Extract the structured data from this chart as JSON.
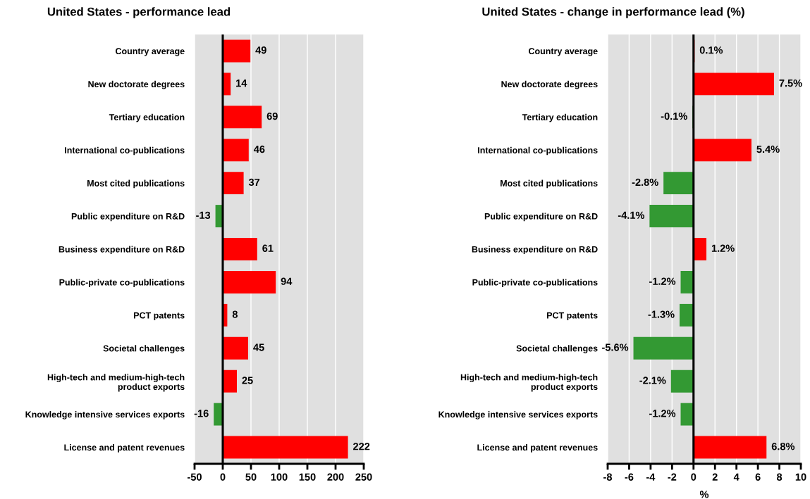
{
  "chart_data": [
    {
      "type": "bar",
      "orientation": "horizontal",
      "title": "United States - performance lead",
      "categories": [
        "Country average",
        "New doctorate degrees",
        "Tertiary education",
        "International co-publications",
        "Most cited publications",
        "Public expenditure on R&D",
        "Business expenditure on R&D",
        "Public-private co-publications",
        "PCT patents",
        "Societal challenges",
        "High-tech and medium-high-tech\nproduct exports",
        "Knowledge intensive services exports",
        "License and patent revenues"
      ],
      "values": [
        49,
        14,
        69,
        46,
        37,
        -13,
        61,
        94,
        8,
        45,
        25,
        -16,
        222
      ],
      "colors": [
        "#ff0000",
        "#ff0000",
        "#ff0000",
        "#ff0000",
        "#ff0000",
        "#339933",
        "#ff0000",
        "#ff0000",
        "#ff0000",
        "#ff0000",
        "#ff0000",
        "#339933",
        "#ff0000"
      ],
      "xlim": [
        -50,
        250
      ],
      "xticks": [
        -50,
        0,
        50,
        100,
        150,
        200,
        250
      ],
      "grid": "x",
      "data_labels": true,
      "ref_lines": [
        {
          "axis": "x",
          "value": 0,
          "color": "#000000"
        }
      ]
    },
    {
      "type": "bar",
      "orientation": "horizontal",
      "title": "United States - change in performance lead (%)",
      "xlabel": "%",
      "categories": [
        "Country average",
        "New doctorate degrees",
        "Tertiary education",
        "International co-publications",
        "Most cited publications",
        "Public expenditure on R&D",
        "Business expenditure on R&D",
        "Public-private co-publications",
        "PCT patents",
        "Societal challenges",
        "High-tech and medium-high-tech\nproduct exports",
        "Knowledge intensive services exports",
        "License and patent revenues"
      ],
      "values": [
        0.1,
        7.5,
        -0.1,
        5.4,
        -2.8,
        -4.1,
        1.2,
        -1.2,
        -1.3,
        -5.6,
        -2.1,
        -1.2,
        6.8
      ],
      "value_labels": [
        "0.1%",
        "7.5%",
        "-0.1%",
        "5.4%",
        "-2.8%",
        "-4.1%",
        "1.2%",
        "-1.2%",
        "-1.3%",
        "-5.6%",
        "-2.1%",
        "-1.2%",
        "6.8%"
      ],
      "colors": [
        "#ff0000",
        "#ff0000",
        "#339933",
        "#ff0000",
        "#339933",
        "#339933",
        "#ff0000",
        "#339933",
        "#339933",
        "#339933",
        "#339933",
        "#339933",
        "#ff0000"
      ],
      "xlim": [
        -8,
        10
      ],
      "xticks": [
        -8,
        -6,
        -4,
        -2,
        0,
        2,
        4,
        6,
        8,
        10
      ],
      "grid": "x",
      "ref_lines": [
        {
          "axis": "x",
          "value": 0,
          "color": "#000000"
        }
      ]
    }
  ]
}
